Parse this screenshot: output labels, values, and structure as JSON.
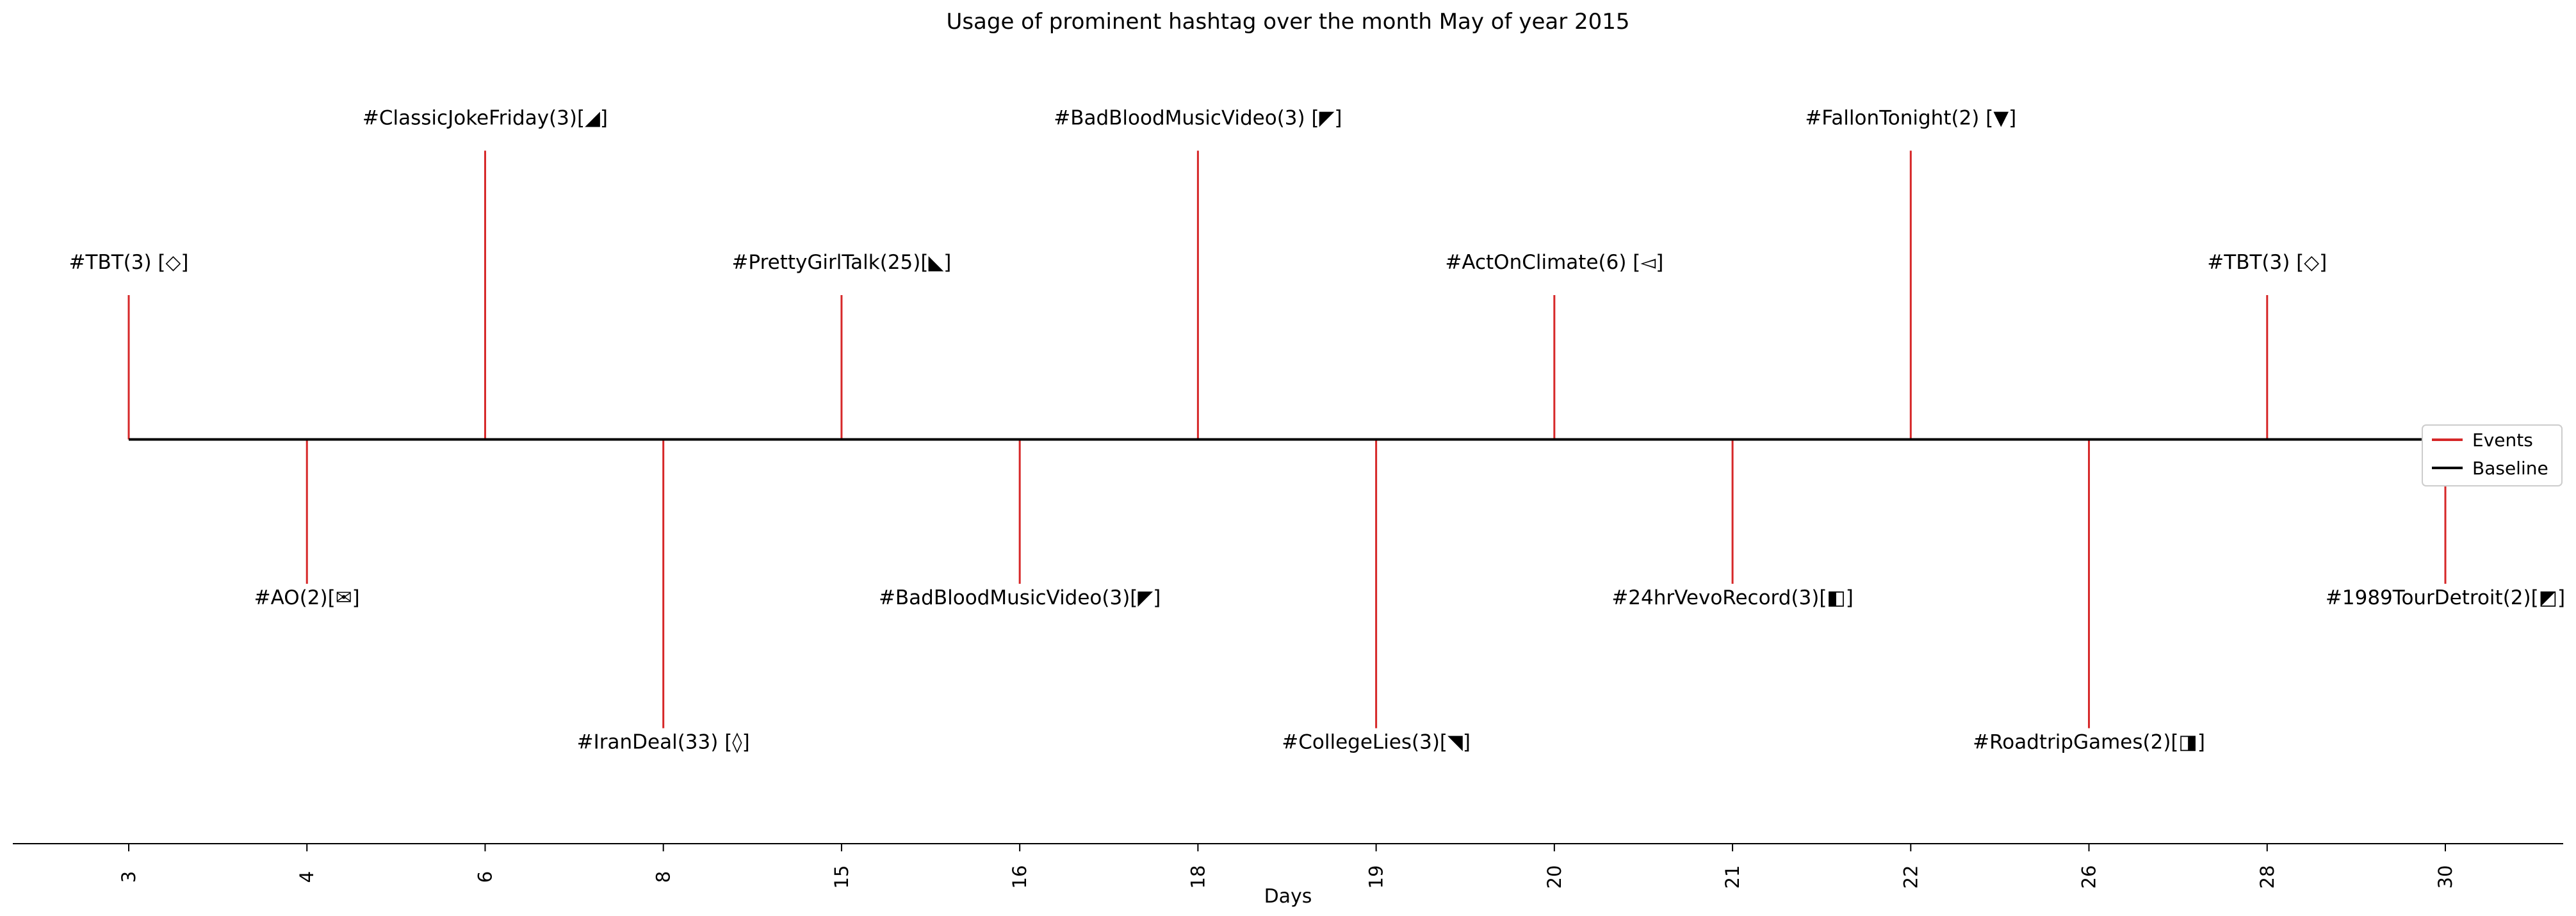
{
  "chart_data": {
    "type": "timeline",
    "title": "Usage of prominent hashtag over the month May of year 2015",
    "xlabel": "Days",
    "ylabel": "",
    "categories": [
      "3",
      "4",
      "6",
      "8",
      "15",
      "16",
      "18",
      "19",
      "20",
      "21",
      "22",
      "26",
      "28",
      "30"
    ],
    "levels": [
      2,
      -2,
      4,
      -4,
      2,
      -2,
      4,
      -4,
      2,
      -2,
      4,
      -4,
      2,
      -2
    ],
    "ylim": [
      -5.6,
      5.6
    ],
    "labels": [
      "#TBT(3) [◇]",
      "#AO(2)[✉]",
      "#ClassicJokeFriday(3)[◢]",
      "#IranDeal(33) [◊]",
      "#PrettyGirlTalk(25)[◣]",
      "#BadBloodMusicVideo(3)[◤]",
      "#BadBloodMusicVideo(3) [◤]",
      "#CollegeLies(3)[◥]",
      "#ActOnClimate(6) [◅]",
      "#24hrVevoRecord(3)[◧]",
      "#FallonTonight(2) [▼]",
      "#RoadtripGames(2)[◨]",
      "#TBT(3) [◇]",
      "#1989TourDetroit(2)[◩]"
    ],
    "legend": {
      "placement": "right",
      "entries": [
        {
          "name": "Events",
          "color": "#d62728"
        },
        {
          "name": "Baseline",
          "color": "#000000"
        }
      ]
    },
    "grid": false,
    "colors": {
      "event": "#d62728",
      "baseline": "#000000"
    }
  }
}
